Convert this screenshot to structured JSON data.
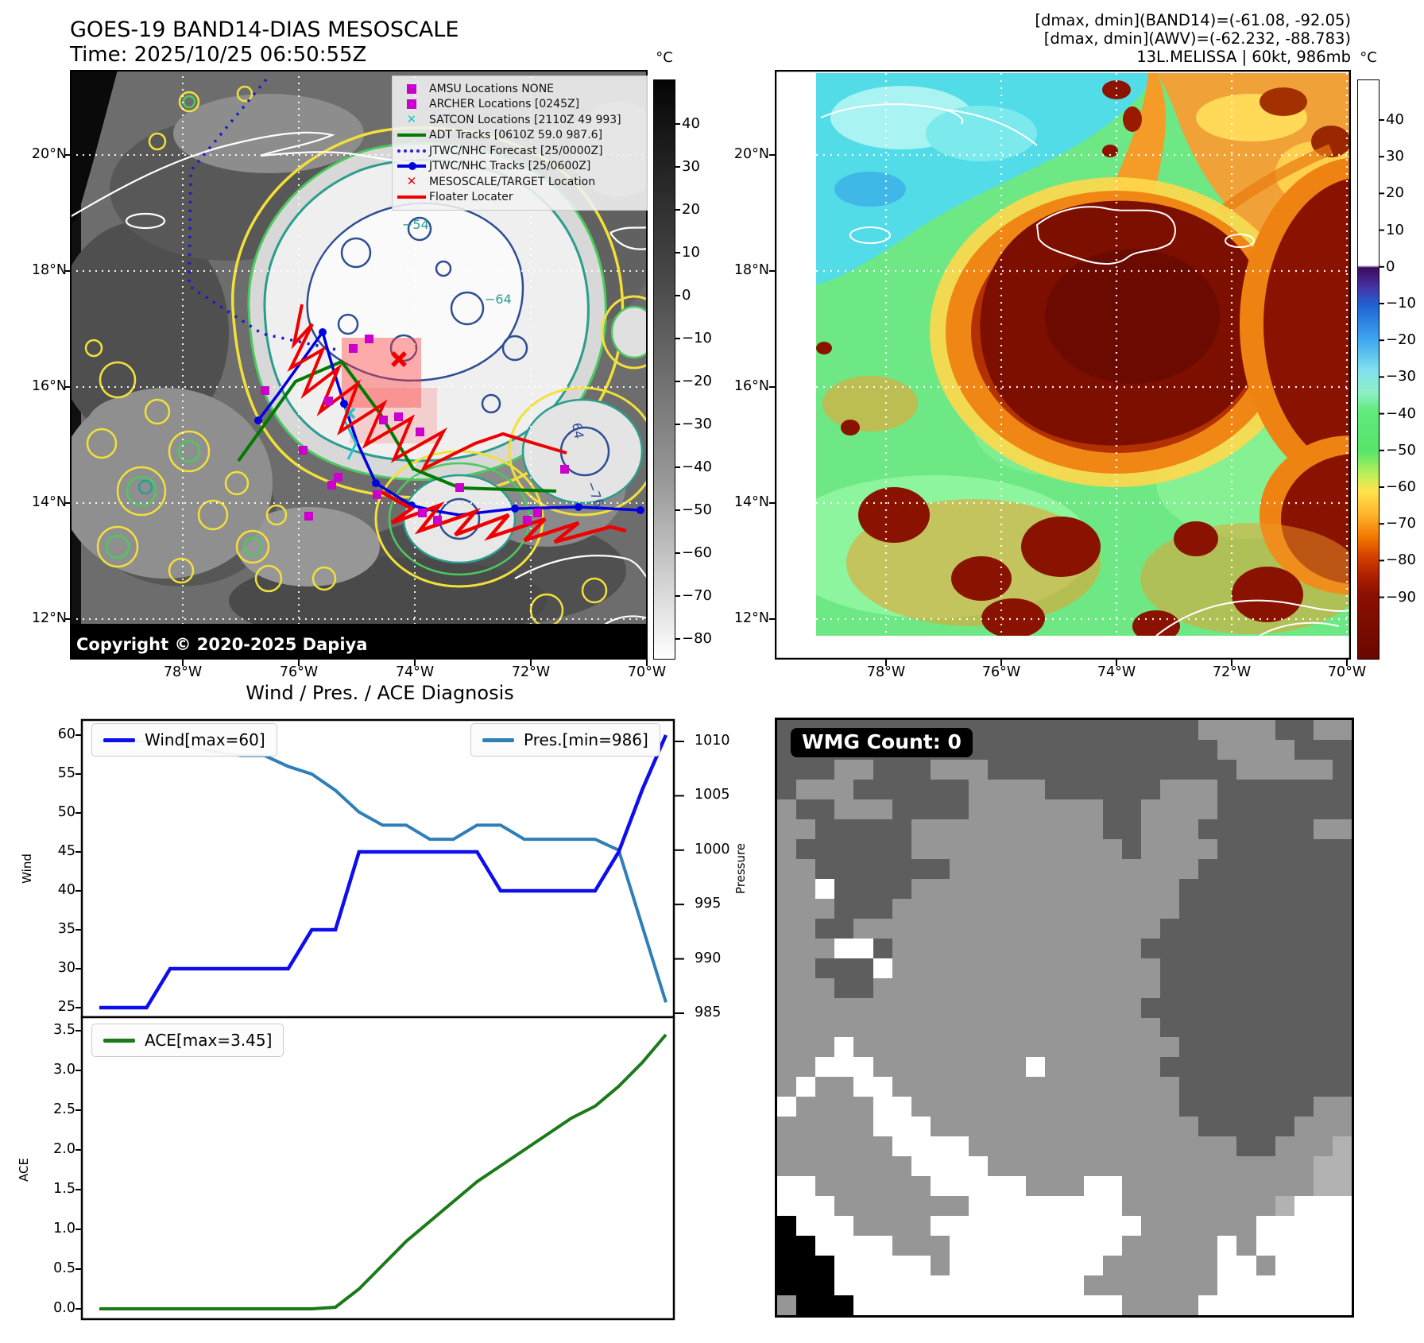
{
  "header_left": {
    "title": "GOES-19 BAND14-DIAS MESOSCALE",
    "time": "Time: 2025/10/25 06:50:55Z"
  },
  "header_right": {
    "line1": "[dmax, dmin](BAND14)=(-61.08, -92.05)",
    "line2": "[dmax, dmin](AWV)=(-62.232, -88.783)",
    "line3": "13L.MELISSA | 60kt, 986mb"
  },
  "left_map": {
    "legend": [
      {
        "marker": "square",
        "color": "#cc00cc",
        "label": "AMSU Locations NONE"
      },
      {
        "marker": "square",
        "color": "#cc00cc",
        "label": "ARCHER Locations [0245Z]"
      },
      {
        "marker": "x",
        "color": "#1fc3c9",
        "label": "SATCON Locations [2110Z 49 993]"
      },
      {
        "marker": "line",
        "color": "#007a00",
        "label": "ADT Tracks [0610Z 59.0 987.6]"
      },
      {
        "marker": "dotted",
        "color": "#2222dd",
        "label": "JTWC/NHC Forecast [25/0000Z]"
      },
      {
        "marker": "line-dot",
        "color": "#0000e0",
        "label": "JTWC/NHC Tracks [25/0600Z]"
      },
      {
        "marker": "x",
        "color": "#ee0000",
        "label": "MESOSCALE/TARGET Location"
      },
      {
        "marker": "line",
        "color": "#ee0000",
        "label": "Floater Locater"
      }
    ],
    "copyright": "Copyright © 2020-2025 Dapiya",
    "lat_ticks": [
      "20°N",
      "18°N",
      "16°N",
      "14°N",
      "12°N"
    ],
    "lon_ticks": [
      "78°W",
      "76°W",
      "74°W",
      "72°W",
      "70°W"
    ],
    "colorbar": {
      "unit": "°C",
      "ticks": [
        40,
        30,
        20,
        10,
        0,
        -10,
        -20,
        -30,
        -40,
        -50,
        -60,
        -70,
        -80
      ]
    },
    "contour_labels": [
      "−54",
      "−64",
      "64",
      "−76"
    ]
  },
  "right_map": {
    "lat_ticks": [
      "20°N",
      "18°N",
      "16°N",
      "14°N",
      "12°N"
    ],
    "lon_ticks": [
      "78°W",
      "76°W",
      "74°W",
      "72°W",
      "70°W"
    ],
    "colorbar": {
      "unit": "°C",
      "ticks": [
        40,
        30,
        20,
        10,
        0,
        -10,
        -20,
        -30,
        -40,
        -50,
        -60,
        -70,
        -80,
        -90
      ]
    }
  },
  "wmg": {
    "label": "WMG Count: 0",
    "palette": {
      "d": "#5e5e5e",
      "g": "#969696",
      "w": "#ffffff",
      "b": "#000000",
      "l": "#b2b2b2"
    },
    "grid": [
      "ddddddddddddddddddddddggggddgg",
      "dddddddddddddddddddddddggggddd",
      "dddggdddgggdddddddddddddgggggd",
      "dgggddddddggggddddddgggddddddd",
      "gddgggddddgggggggddggggddddddd",
      "ggdddddggggggggggddgggddddddgg",
      "gddddddgggggggggggdggggddddddd",
      "ggdddddddgggggggggggggdddddddd",
      "ggwddddggggggggggggggddddddddd",
      "gggdddgggggggggggggggddddddddd",
      "ggddggggggggggggggggdddddddddd",
      "gggwwdgggggggggggggddddddddddd",
      "ggdddwggggggggggggggdddddddddd",
      "gggddgggggggggggggggdddddddddd",
      "gggggggggggggggggggddddddddddd",
      "ggggggggggggggggggggdddddddddd",
      "gggwgggggggggggggggggddddddddd",
      "ggwwwggggggggwggggggdddddddddd",
      "gwggwwgggggggggggggggddddddddd",
      "wggggwwggggggggggggggdddddddgg",
      "gggggwwwggggggggggggggdddddggg",
      "ggggggwwwwggggggggggggggddgggl",
      "gggggggwwwwgggggggggggggggggll",
      "wwggggggwwwwwgggwwggggggggggll",
      "wwwgggggggwwwwwwwwgggggggglwww",
      "bwwwggggwwwwwwwwwwwggggggwwwww",
      "bbwwwwgggwwwwwwwwwgggggwgwwwww",
      "bbbwwwwwgwwwwwwwwggggggwwgwwww",
      "bbbwwwwwwwwwwwwwgggggggwwwwwww",
      "gbbbwwwwwwwwwwwwwwggggwwwwwwww"
    ]
  },
  "chart_data": [
    {
      "type": "line",
      "title": "Wind / Pres. / ACE Diagnosis",
      "grid": false,
      "legend_position": "upper-left / upper-right",
      "x": {
        "type": "index",
        "n": 25
      },
      "series": [
        {
          "name": "Wind[max=60]",
          "color": "#0d0dee",
          "axis": "left",
          "ylabel": "Wind",
          "ylim": [
            25,
            60
          ],
          "yticks": [
            60,
            55,
            50,
            45,
            40,
            35,
            30,
            25
          ],
          "values": [
            25,
            25,
            25,
            30,
            30,
            30,
            30,
            30,
            30,
            35,
            35,
            45,
            45,
            45,
            45,
            45,
            45,
            40,
            40,
            40,
            40,
            40,
            45,
            53,
            60
          ]
        },
        {
          "name": "Pres.[min=986]",
          "color": "#2e7eb8",
          "axis": "right",
          "ylabel": "Pressure",
          "ylim": [
            985,
            1010
          ],
          "yticks": [
            1010,
            1005,
            1000,
            995,
            990,
            985
          ],
          "values": [
            1010,
            1010,
            1010,
            1010,
            1009.5,
            1009,
            1008.7,
            1008.7,
            1007.7,
            1007,
            1005.5,
            1003.5,
            1002.3,
            1002.3,
            1001,
            1001,
            1002.3,
            1002.3,
            1001,
            1001,
            1001,
            1001,
            1000,
            993,
            986
          ]
        }
      ]
    },
    {
      "type": "line",
      "grid": false,
      "legend_position": "upper-left",
      "x": {
        "type": "index",
        "n": 25
      },
      "series": [
        {
          "name": "ACE[max=3.45]",
          "color": "#1a7a1a",
          "axis": "left",
          "ylabel": "ACE",
          "ylim": [
            0,
            3.5
          ],
          "yticks": [
            3.5,
            3.0,
            2.5,
            2.0,
            1.5,
            1.0,
            0.5,
            0.0
          ],
          "values": [
            0,
            0,
            0,
            0,
            0,
            0,
            0,
            0,
            0,
            0,
            0.02,
            0.25,
            0.55,
            0.85,
            1.1,
            1.35,
            1.6,
            1.8,
            2.0,
            2.2,
            2.4,
            2.55,
            2.8,
            3.1,
            3.45
          ]
        }
      ]
    }
  ]
}
